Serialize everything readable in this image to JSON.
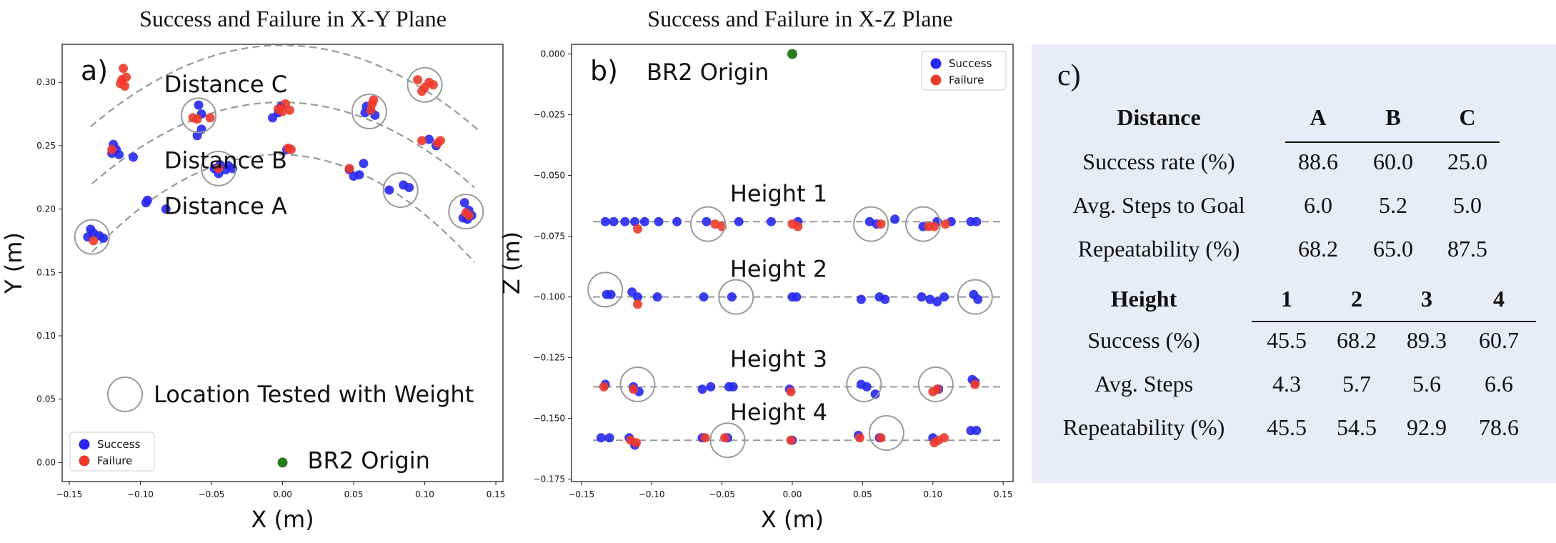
{
  "panel_a": {
    "title": "Success and Failure in X-Y Plane",
    "tag": "a)",
    "xlabel": "X (m)",
    "ylabel": "Y (m)",
    "xticks": [
      "−0.15",
      "−0.10",
      "−0.05",
      "0.00",
      "0.05",
      "0.10",
      "0.15"
    ],
    "yticks": [
      "0.00",
      "0.05",
      "0.10",
      "0.15",
      "0.20",
      "0.25",
      "0.30"
    ],
    "arc_labels": [
      "Distance A",
      "Distance B",
      "Distance C"
    ],
    "weight_legend": "Location Tested with Weight",
    "origin_label": "BR2 Origin",
    "legend": [
      "Success",
      "Failure"
    ]
  },
  "panel_b": {
    "title": "Success and Failure in X-Z Plane",
    "tag": "b)",
    "xlabel": "X (m)",
    "ylabel": "Z (m)",
    "xticks": [
      "−0.15",
      "−0.10",
      "−0.05",
      "0.00",
      "0.05",
      "0.10",
      "0.15"
    ],
    "yticks": [
      "0.000",
      "−0.025",
      "−0.050",
      "−0.075",
      "−0.100",
      "−0.125",
      "−0.150",
      "−0.175"
    ],
    "height_labels": [
      "Height 1",
      "Height 2",
      "Height 3",
      "Height 4"
    ],
    "origin_label": "BR2 Origin",
    "legend": [
      "Success",
      "Failure"
    ]
  },
  "panel_c": {
    "tag": "c)",
    "distance_header": [
      "Distance",
      "A",
      "B",
      "C"
    ],
    "distance_rows": [
      [
        "Success rate (%)",
        "88.6",
        "60.0",
        "25.0"
      ],
      [
        "Avg. Steps to Goal",
        "6.0",
        "5.2",
        "5.0"
      ],
      [
        "Repeatability (%)",
        "68.2",
        "65.0",
        "87.5"
      ]
    ],
    "height_header": [
      "Height",
      "1",
      "2",
      "3",
      "4"
    ],
    "height_rows": [
      [
        "Success (%)",
        "45.5",
        "68.2",
        "89.3",
        "60.7"
      ],
      [
        "Avg. Steps",
        "4.3",
        "5.7",
        "5.6",
        "6.6"
      ],
      [
        "Repeatability (%)",
        "45.5",
        "54.5",
        "92.9",
        "78.6"
      ]
    ]
  },
  "colors": {
    "success": "#2727ee",
    "failure": "#ee3a2c",
    "origin": "#2a7a1e",
    "guide": "#999999",
    "panel_bg": "#e9ecf7"
  },
  "chart_data": [
    {
      "type": "scatter",
      "title": "Success and Failure in X-Y Plane",
      "xlabel": "X (m)",
      "ylabel": "Y (m)",
      "xlim": [
        -0.155,
        0.155
      ],
      "ylim": [
        -0.015,
        0.33
      ],
      "origin": [
        0.0,
        0.0
      ],
      "series": [
        {
          "name": "Success",
          "points": [
            [
              -0.137,
              0.178
            ],
            [
              -0.133,
              0.181
            ],
            [
              -0.129,
              0.179
            ],
            [
              -0.135,
              0.184
            ],
            [
              -0.126,
              0.177
            ],
            [
              -0.119,
              0.251
            ],
            [
              -0.117,
              0.247
            ],
            [
              -0.115,
              0.243
            ],
            [
              -0.12,
              0.244
            ],
            [
              -0.105,
              0.241
            ],
            [
              -0.096,
              0.205
            ],
            [
              -0.095,
              0.207
            ],
            [
              -0.082,
              0.2
            ],
            [
              -0.059,
              0.282
            ],
            [
              -0.057,
              0.275
            ],
            [
              -0.06,
              0.258
            ],
            [
              -0.057,
              0.263
            ],
            [
              -0.048,
              0.232
            ],
            [
              -0.045,
              0.228
            ],
            [
              -0.04,
              0.231
            ],
            [
              -0.038,
              0.234
            ],
            [
              -0.035,
              0.232
            ],
            [
              -0.044,
              0.235
            ],
            [
              -0.007,
              0.272
            ],
            [
              -0.003,
              0.276
            ],
            [
              -0.001,
              0.281
            ],
            [
              0.003,
              0.247
            ],
            [
              0.047,
              0.231
            ],
            [
              0.05,
              0.226
            ],
            [
              0.054,
              0.227
            ],
            [
              0.057,
              0.236
            ],
            [
              0.058,
              0.276
            ],
            [
              0.062,
              0.278
            ],
            [
              0.065,
              0.274
            ],
            [
              0.059,
              0.281
            ],
            [
              0.075,
              0.215
            ],
            [
              0.085,
              0.219
            ],
            [
              0.089,
              0.217
            ],
            [
              0.103,
              0.255
            ],
            [
              0.108,
              0.25
            ],
            [
              0.128,
              0.205
            ],
            [
              0.131,
              0.199
            ],
            [
              0.13,
              0.192
            ],
            [
              0.133,
              0.195
            ],
            [
              0.127,
              0.193
            ]
          ]
        },
        {
          "name": "Failure",
          "points": [
            [
              -0.112,
              0.311
            ],
            [
              -0.113,
              0.302
            ],
            [
              -0.111,
              0.297
            ],
            [
              -0.114,
              0.299
            ],
            [
              -0.11,
              0.304
            ],
            [
              -0.12,
              0.247
            ],
            [
              -0.133,
              0.175
            ],
            [
              -0.063,
              0.272
            ],
            [
              -0.06,
              0.271
            ],
            [
              -0.051,
              0.272
            ],
            [
              -0.045,
              0.232
            ],
            [
              -0.003,
              0.279
            ],
            [
              0.0,
              0.277
            ],
            [
              0.002,
              0.283
            ],
            [
              0.005,
              0.278
            ],
            [
              0.006,
              0.247
            ],
            [
              0.004,
              0.248
            ],
            [
              0.047,
              0.232
            ],
            [
              0.063,
              0.283
            ],
            [
              0.064,
              0.286
            ],
            [
              0.062,
              0.278
            ],
            [
              0.095,
              0.302
            ],
            [
              0.1,
              0.296
            ],
            [
              0.103,
              0.3
            ],
            [
              0.098,
              0.293
            ],
            [
              0.106,
              0.298
            ],
            [
              0.098,
              0.254
            ],
            [
              0.109,
              0.252
            ],
            [
              0.111,
              0.254
            ],
            [
              0.129,
              0.197
            ],
            [
              0.131,
              0.195
            ]
          ]
        }
      ],
      "weight_locations": [
        [
          -0.134,
          0.178
        ],
        [
          -0.059,
          0.274
        ],
        [
          -0.045,
          0.232
        ],
        [
          0.061,
          0.277
        ],
        [
          0.083,
          0.215
        ],
        [
          0.1,
          0.298
        ],
        [
          0.129,
          0.198
        ]
      ],
      "annotations": [
        "Distance A",
        "Distance B",
        "Distance C",
        "Location Tested with Weight",
        "BR2 Origin"
      ],
      "legend": "bottom-left"
    },
    {
      "type": "scatter",
      "title": "Success and Failure in X-Z Plane",
      "xlabel": "X (m)",
      "ylabel": "Z (m)",
      "xlim": [
        -0.157,
        0.157
      ],
      "ylim": [
        -0.176,
        0.004
      ],
      "origin": [
        0.0,
        0.0
      ],
      "height_lines": [
        -0.069,
        -0.1,
        -0.137,
        -0.159
      ],
      "series": [
        {
          "name": "Success",
          "points": [
            [
              -0.133,
              -0.069
            ],
            [
              -0.127,
              -0.069
            ],
            [
              -0.119,
              -0.069
            ],
            [
              -0.112,
              -0.069
            ],
            [
              -0.105,
              -0.069
            ],
            [
              -0.095,
              -0.069
            ],
            [
              -0.082,
              -0.069
            ],
            [
              -0.061,
              -0.069
            ],
            [
              -0.038,
              -0.069
            ],
            [
              -0.015,
              -0.069
            ],
            [
              0.004,
              -0.069
            ],
            [
              0.055,
              -0.069
            ],
            [
              0.06,
              -0.07
            ],
            [
              0.073,
              -0.068
            ],
            [
              0.093,
              -0.071
            ],
            [
              0.103,
              -0.069
            ],
            [
              0.113,
              -0.069
            ],
            [
              0.127,
              -0.069
            ],
            [
              0.131,
              -0.069
            ],
            [
              -0.132,
              -0.099
            ],
            [
              -0.129,
              -0.099
            ],
            [
              -0.114,
              -0.098
            ],
            [
              -0.11,
              -0.1
            ],
            [
              -0.096,
              -0.1
            ],
            [
              -0.063,
              -0.1
            ],
            [
              -0.043,
              -0.1
            ],
            [
              0.0,
              -0.1
            ],
            [
              0.003,
              -0.1
            ],
            [
              0.049,
              -0.101
            ],
            [
              0.062,
              -0.1
            ],
            [
              0.066,
              -0.101
            ],
            [
              0.092,
              -0.1
            ],
            [
              0.098,
              -0.101
            ],
            [
              0.103,
              -0.102
            ],
            [
              0.108,
              -0.1
            ],
            [
              0.129,
              -0.099
            ],
            [
              0.132,
              -0.101
            ],
            [
              -0.133,
              -0.136
            ],
            [
              -0.113,
              -0.137
            ],
            [
              -0.109,
              -0.139
            ],
            [
              -0.064,
              -0.138
            ],
            [
              -0.058,
              -0.137
            ],
            [
              -0.045,
              -0.137
            ],
            [
              -0.042,
              -0.137
            ],
            [
              -0.002,
              -0.138
            ],
            [
              0.049,
              -0.136
            ],
            [
              0.053,
              -0.137
            ],
            [
              0.059,
              -0.14
            ],
            [
              0.104,
              -0.138
            ],
            [
              0.128,
              -0.134
            ],
            [
              0.13,
              -0.135
            ],
            [
              -0.136,
              -0.158
            ],
            [
              -0.13,
              -0.158
            ],
            [
              -0.116,
              -0.158
            ],
            [
              -0.112,
              -0.161
            ],
            [
              -0.064,
              -0.158
            ],
            [
              -0.046,
              -0.158
            ],
            [
              0.0,
              -0.159
            ],
            [
              0.047,
              -0.157
            ],
            [
              0.062,
              -0.158
            ],
            [
              0.1,
              -0.158
            ],
            [
              0.127,
              -0.155
            ],
            [
              0.131,
              -0.155
            ]
          ]
        },
        {
          "name": "Failure",
          "points": [
            [
              -0.11,
              -0.072
            ],
            [
              -0.055,
              -0.07
            ],
            [
              -0.05,
              -0.071
            ],
            [
              0.0,
              -0.07
            ],
            [
              0.004,
              -0.071
            ],
            [
              0.063,
              -0.07
            ],
            [
              0.097,
              -0.071
            ],
            [
              0.101,
              -0.071
            ],
            [
              0.109,
              -0.07
            ],
            [
              -0.11,
              -0.103
            ],
            [
              -0.134,
              -0.137
            ],
            [
              -0.113,
              -0.138
            ],
            [
              -0.001,
              -0.139
            ],
            [
              0.1,
              -0.139
            ],
            [
              0.103,
              -0.138
            ],
            [
              0.13,
              -0.136
            ],
            [
              -0.115,
              -0.159
            ],
            [
              -0.111,
              -0.16
            ],
            [
              -0.062,
              -0.158
            ],
            [
              -0.048,
              -0.158
            ],
            [
              -0.001,
              -0.159
            ],
            [
              0.048,
              -0.158
            ],
            [
              0.063,
              -0.158
            ],
            [
              0.101,
              -0.16
            ],
            [
              0.104,
              -0.159
            ],
            [
              0.108,
              -0.158
            ]
          ]
        }
      ],
      "weight_locations": [
        [
          -0.06,
          -0.07
        ],
        [
          0.056,
          -0.07
        ],
        [
          0.093,
          -0.07
        ],
        [
          -0.133,
          -0.097
        ],
        [
          -0.04,
          -0.1
        ],
        [
          0.13,
          -0.1
        ],
        [
          -0.11,
          -0.136
        ],
        [
          0.051,
          -0.136
        ],
        [
          0.102,
          -0.136
        ],
        [
          -0.046,
          -0.159
        ],
        [
          0.067,
          -0.156
        ]
      ],
      "annotations": [
        "BR2 Origin",
        "Height 1",
        "Height 2",
        "Height 3",
        "Height 4"
      ],
      "legend": "top-right"
    },
    {
      "type": "table",
      "tables": [
        {
          "columns": [
            "Distance",
            "A",
            "B",
            "C"
          ],
          "rows": [
            [
              "Success rate (%)",
              88.6,
              60.0,
              25.0
            ],
            [
              "Avg. Steps to Goal",
              6.0,
              5.2,
              5.0
            ],
            [
              "Repeatability (%)",
              68.2,
              65.0,
              87.5
            ]
          ]
        },
        {
          "columns": [
            "Height",
            "1",
            "2",
            "3",
            "4"
          ],
          "rows": [
            [
              "Success (%)",
              45.5,
              68.2,
              89.3,
              60.7
            ],
            [
              "Avg. Steps",
              4.3,
              5.7,
              5.6,
              6.6
            ],
            [
              "Repeatability (%)",
              45.5,
              54.5,
              92.9,
              78.6
            ]
          ]
        }
      ]
    }
  ]
}
